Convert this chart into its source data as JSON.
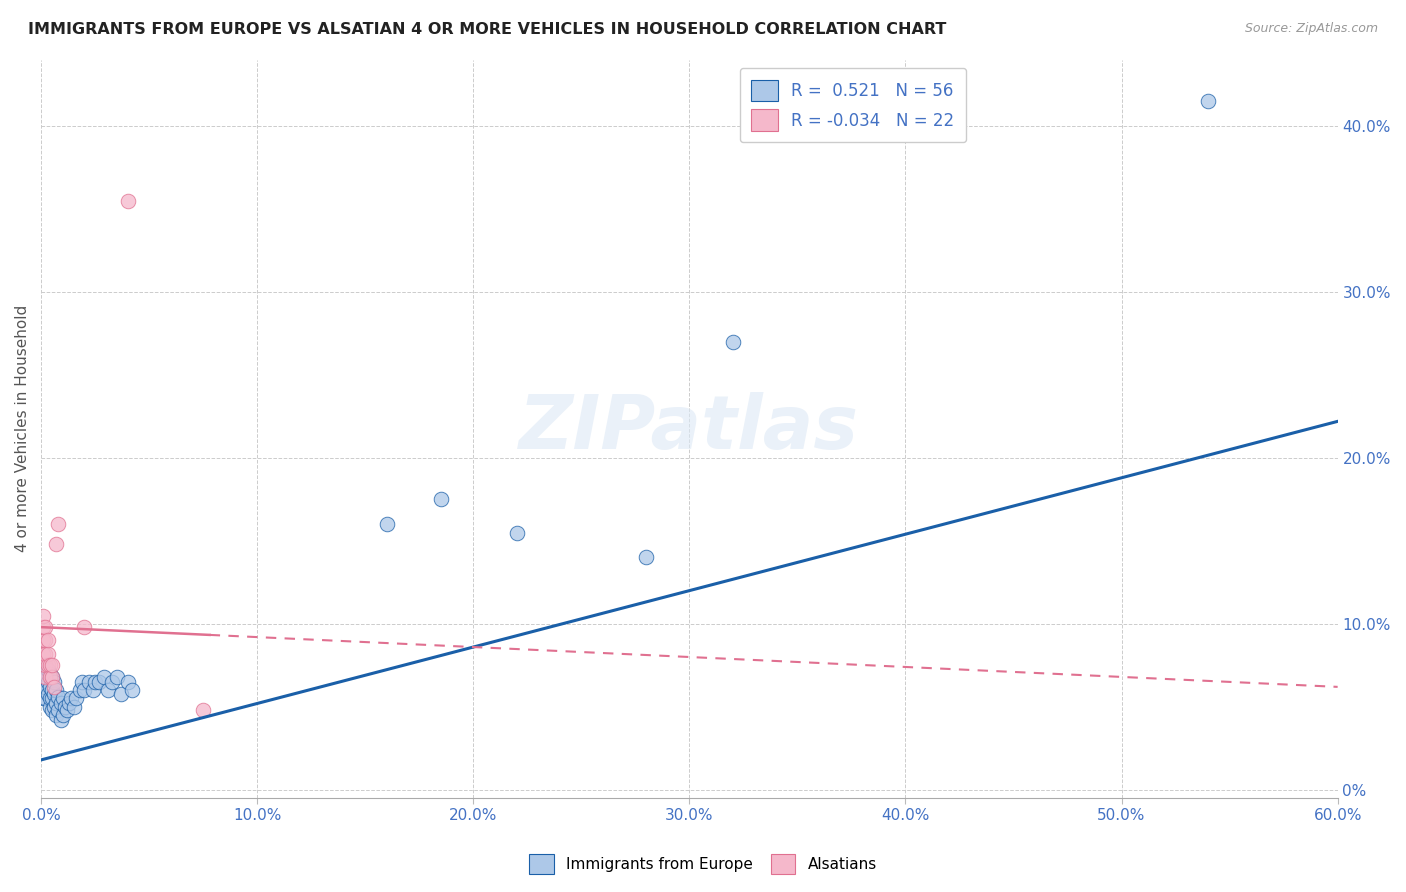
{
  "title": "IMMIGRANTS FROM EUROPE VS ALSATIAN 4 OR MORE VEHICLES IN HOUSEHOLD CORRELATION CHART",
  "source": "Source: ZipAtlas.com",
  "ylabel": "4 or more Vehicles in Household",
  "xmin": 0.0,
  "xmax": 0.6,
  "ymin": -0.005,
  "ymax": 0.44,
  "blue_R": 0.521,
  "blue_N": 56,
  "pink_R": -0.034,
  "pink_N": 22,
  "blue_color": "#adc8e8",
  "pink_color": "#f5b8cb",
  "blue_line_color": "#1a5fa8",
  "pink_line_color": "#e07090",
  "background_color": "#ffffff",
  "watermark_text": "ZIPatlas",
  "blue_points_x": [
    0.001,
    0.001,
    0.001,
    0.002,
    0.002,
    0.002,
    0.002,
    0.003,
    0.003,
    0.003,
    0.004,
    0.004,
    0.004,
    0.004,
    0.005,
    0.005,
    0.005,
    0.005,
    0.006,
    0.006,
    0.006,
    0.007,
    0.007,
    0.007,
    0.008,
    0.008,
    0.009,
    0.009,
    0.01,
    0.01,
    0.011,
    0.012,
    0.013,
    0.014,
    0.015,
    0.016,
    0.018,
    0.019,
    0.02,
    0.022,
    0.024,
    0.025,
    0.027,
    0.029,
    0.031,
    0.033,
    0.035,
    0.037,
    0.04,
    0.042,
    0.16,
    0.185,
    0.22,
    0.28,
    0.32,
    0.54
  ],
  "blue_points_y": [
    0.055,
    0.06,
    0.068,
    0.055,
    0.062,
    0.07,
    0.075,
    0.058,
    0.065,
    0.072,
    0.05,
    0.055,
    0.062,
    0.07,
    0.048,
    0.055,
    0.06,
    0.068,
    0.05,
    0.058,
    0.065,
    0.045,
    0.052,
    0.06,
    0.048,
    0.056,
    0.042,
    0.052,
    0.045,
    0.055,
    0.05,
    0.048,
    0.052,
    0.055,
    0.05,
    0.055,
    0.06,
    0.065,
    0.06,
    0.065,
    0.06,
    0.065,
    0.065,
    0.068,
    0.06,
    0.065,
    0.068,
    0.058,
    0.065,
    0.06,
    0.16,
    0.175,
    0.155,
    0.14,
    0.27,
    0.415
  ],
  "pink_points_x": [
    0.001,
    0.001,
    0.001,
    0.001,
    0.002,
    0.002,
    0.002,
    0.002,
    0.002,
    0.003,
    0.003,
    0.003,
    0.004,
    0.004,
    0.005,
    0.005,
    0.006,
    0.007,
    0.008,
    0.02,
    0.04,
    0.075
  ],
  "pink_points_y": [
    0.082,
    0.09,
    0.098,
    0.105,
    0.068,
    0.075,
    0.082,
    0.09,
    0.098,
    0.075,
    0.082,
    0.09,
    0.068,
    0.075,
    0.068,
    0.075,
    0.062,
    0.148,
    0.16,
    0.098,
    0.355,
    0.048
  ],
  "blue_intercept": 0.018,
  "blue_slope": 0.34,
  "pink_intercept": 0.098,
  "pink_slope": -0.06,
  "xtick_vals": [
    0.0,
    0.1,
    0.2,
    0.3,
    0.4,
    0.5,
    0.6
  ],
  "ytick_right_vals": [
    0.0,
    0.1,
    0.2,
    0.3,
    0.4
  ],
  "ytick_right_labels": [
    "0%",
    "10.0%",
    "20.0%",
    "30.0%",
    "40.0%"
  ]
}
